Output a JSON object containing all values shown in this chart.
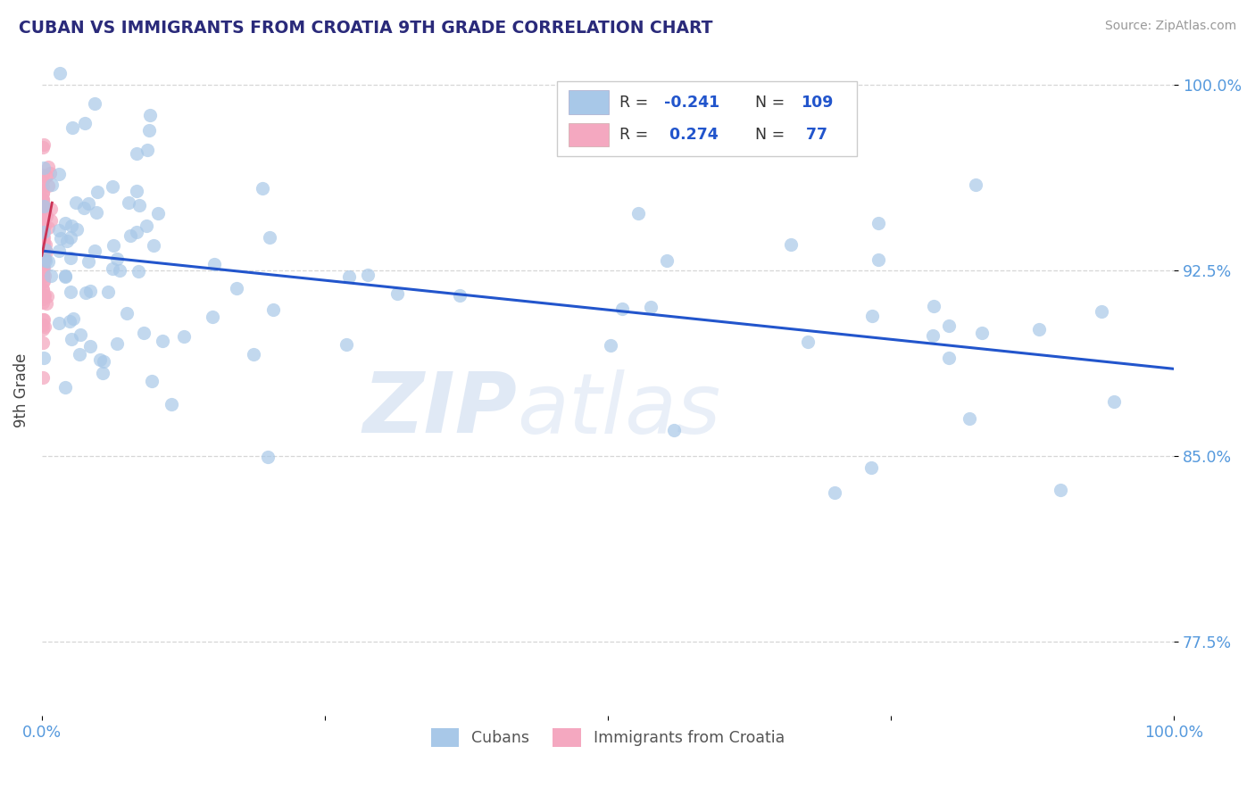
{
  "title": "CUBAN VS IMMIGRANTS FROM CROATIA 9TH GRADE CORRELATION CHART",
  "source_text": "Source: ZipAtlas.com",
  "ylabel": "9th Grade",
  "xlim": [
    0.0,
    1.0
  ],
  "ylim": [
    0.745,
    1.008
  ],
  "yticks": [
    0.775,
    0.85,
    0.925,
    1.0
  ],
  "ytick_labels": [
    "77.5%",
    "85.0%",
    "92.5%",
    "100.0%"
  ],
  "blue_R": -0.241,
  "blue_N": 109,
  "pink_R": 0.274,
  "pink_N": 77,
  "blue_color": "#a8c8e8",
  "pink_color": "#f4a8c0",
  "trend_blue_color": "#2255cc",
  "trend_pink_color": "#cc3355",
  "legend_label_blue": "Cubans",
  "legend_label_pink": "Immigrants from Croatia",
  "watermark_zip": "ZIP",
  "watermark_atlas": "atlas",
  "background_color": "#ffffff",
  "grid_color": "#bbbbbb",
  "title_color": "#2a2a7a",
  "tick_label_color": "#5599dd",
  "ylabel_color": "#444444"
}
